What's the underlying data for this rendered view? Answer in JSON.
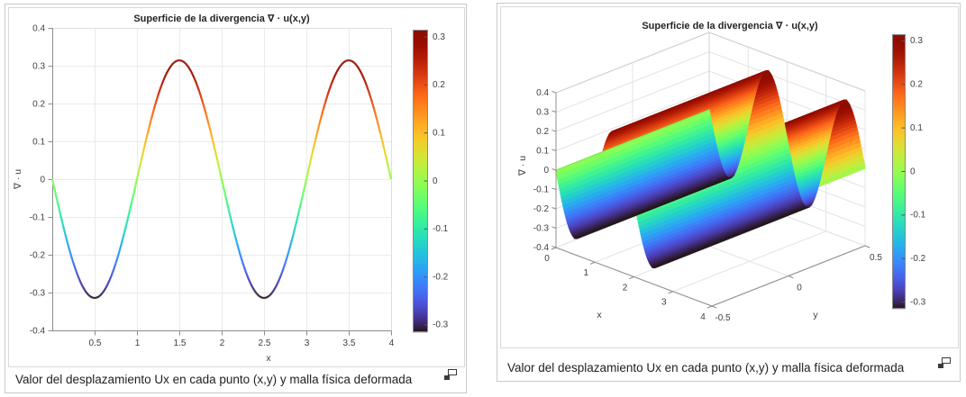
{
  "figures": [
    {
      "title": "Superficie de la divergencia ∇ · u(x,y)",
      "caption": "Valor del desplazamiento Ux en cada punto (x,y) y malla física deformada",
      "popup_icon": "open-figure-in-window"
    },
    {
      "title": "Superficie de la divergencia ∇ · u(x,y)",
      "caption": "Valor del desplazamiento Ux en cada punto (x,y) y malla física deformada",
      "popup_icon": "open-figure-in-window"
    }
  ],
  "chart_data": [
    {
      "type": "line",
      "title": "Superficie de la divergencia ∇ · u(x,y)",
      "xlabel": "x",
      "ylabel": "∇ · u",
      "xlim": [
        0,
        4
      ],
      "ylim": [
        -0.4,
        0.4
      ],
      "xticks": [
        0.5,
        1,
        1.5,
        2,
        2.5,
        3,
        3.5,
        4
      ],
      "yticks": [
        -0.4,
        -0.3,
        -0.2,
        -0.1,
        0,
        0.1,
        0.2,
        0.3,
        0.4
      ],
      "grid": true,
      "colormap": "turbo",
      "clim": [
        -0.3142,
        0.3142
      ],
      "colorbar_ticks": [
        0.3,
        0.2,
        0.1,
        0,
        -0.1,
        -0.2,
        -0.3
      ],
      "curve": {
        "expression": "y = -0.1*pi*sin(pi*x)",
        "amplitude": 0.3142,
        "period": 2,
        "x_range": [
          0,
          4
        ],
        "samples_x": [
          0,
          0.25,
          0.5,
          0.75,
          1,
          1.25,
          1.5,
          1.75,
          2,
          2.25,
          2.5,
          2.75,
          3,
          3.25,
          3.5,
          3.75,
          4
        ],
        "samples_y": [
          0,
          -0.2222,
          -0.3142,
          -0.2222,
          0,
          0.2222,
          0.3142,
          0.2222,
          0,
          -0.2222,
          -0.3142,
          -0.2222,
          0,
          0.2222,
          0.3142,
          0.2222,
          0
        ]
      }
    },
    {
      "type": "surface",
      "title": "Superficie de la divergencia ∇ · u(x,y)",
      "xlabel": "x",
      "ylabel": "y",
      "zlabel": "∇ · u",
      "xlim": [
        0,
        4
      ],
      "ylim": [
        -0.5,
        0.5
      ],
      "zlim": [
        -0.4,
        0.4
      ],
      "xticks": [
        0,
        1,
        2,
        3,
        4
      ],
      "yticks": [
        -0.5,
        0,
        0.5
      ],
      "zticks": [
        -0.4,
        -0.3,
        -0.2,
        -0.1,
        0,
        0.1,
        0.2,
        0.3,
        0.4
      ],
      "grid": true,
      "view": {
        "azimuth": -37.5,
        "elevation": 30
      },
      "colormap": "turbo",
      "clim": [
        -0.3142,
        0.3142
      ],
      "colorbar_ticks": [
        0.3,
        0.2,
        0.1,
        0,
        -0.1,
        -0.2,
        -0.3
      ],
      "surface": {
        "expression": "z = -0.1*pi*sin(pi*x)  (constant along y)",
        "amplitude": 0.3142,
        "period": 2,
        "samples_x": [
          0,
          0.25,
          0.5,
          0.75,
          1,
          1.25,
          1.5,
          1.75,
          2,
          2.25,
          2.5,
          2.75,
          3,
          3.25,
          3.5,
          3.75,
          4
        ],
        "samples_z": [
          0,
          -0.2222,
          -0.3142,
          -0.2222,
          0,
          0.2222,
          0.3142,
          0.2222,
          0,
          -0.2222,
          -0.3142,
          -0.2222,
          0,
          0.2222,
          0.3142,
          0.2222,
          0
        ]
      }
    }
  ]
}
